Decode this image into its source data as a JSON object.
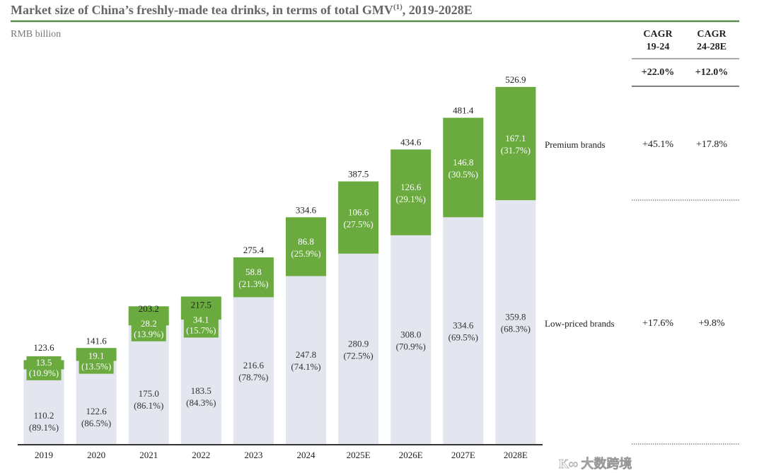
{
  "chart_data": {
    "type": "bar",
    "stacked": true,
    "title": "Market size of China’s freshly-made tea drinks, in terms of total GMV",
    "title_superscript": "(1)",
    "title_suffix": ", 2019-2028E",
    "ylabel": "RMB billion",
    "categories": [
      "2019",
      "2020",
      "2021",
      "2022",
      "2023",
      "2024",
      "2025E",
      "2026E",
      "2027E",
      "2028E"
    ],
    "totals": [
      123.6,
      141.6,
      203.2,
      217.5,
      275.4,
      334.6,
      387.5,
      434.6,
      481.4,
      526.9
    ],
    "series": [
      {
        "name": "Low-priced brands",
        "color": "#e3e6ef",
        "values": [
          110.2,
          122.6,
          175.0,
          183.5,
          216.6,
          247.8,
          280.9,
          308.0,
          334.6,
          359.8
        ],
        "shares": [
          "89.1%",
          "86.5%",
          "86.1%",
          "84.3%",
          "78.7%",
          "74.1%",
          "72.5%",
          "70.9%",
          "69.5%",
          "68.3%"
        ]
      },
      {
        "name": "Premium brands",
        "color": "#6aaa3f",
        "values": [
          13.5,
          19.1,
          28.2,
          34.1,
          58.8,
          86.8,
          106.6,
          126.6,
          146.8,
          167.1
        ],
        "shares": [
          "10.9%",
          "13.5%",
          "13.9%",
          "15.7%",
          "21.3%",
          "25.9%",
          "27.5%",
          "29.1%",
          "30.5%",
          "31.7%"
        ]
      }
    ],
    "ylim": [
      0,
      540
    ],
    "grid": false
  },
  "cagr_table": {
    "headers": [
      "CAGR\n19-24",
      "CAGR\n24-28E"
    ],
    "header_lines": [
      [
        "CAGR",
        "19-24"
      ],
      [
        "CAGR",
        "24-28E"
      ]
    ],
    "total": [
      "+22.0%",
      "+12.0%"
    ],
    "rows": [
      {
        "label": "Premium brands",
        "values": [
          "+45.1%",
          "+17.8%"
        ]
      },
      {
        "label": "Low-priced brands",
        "values": [
          "+17.6%",
          "+9.8%"
        ]
      }
    ]
  },
  "watermark": "大数跨境"
}
